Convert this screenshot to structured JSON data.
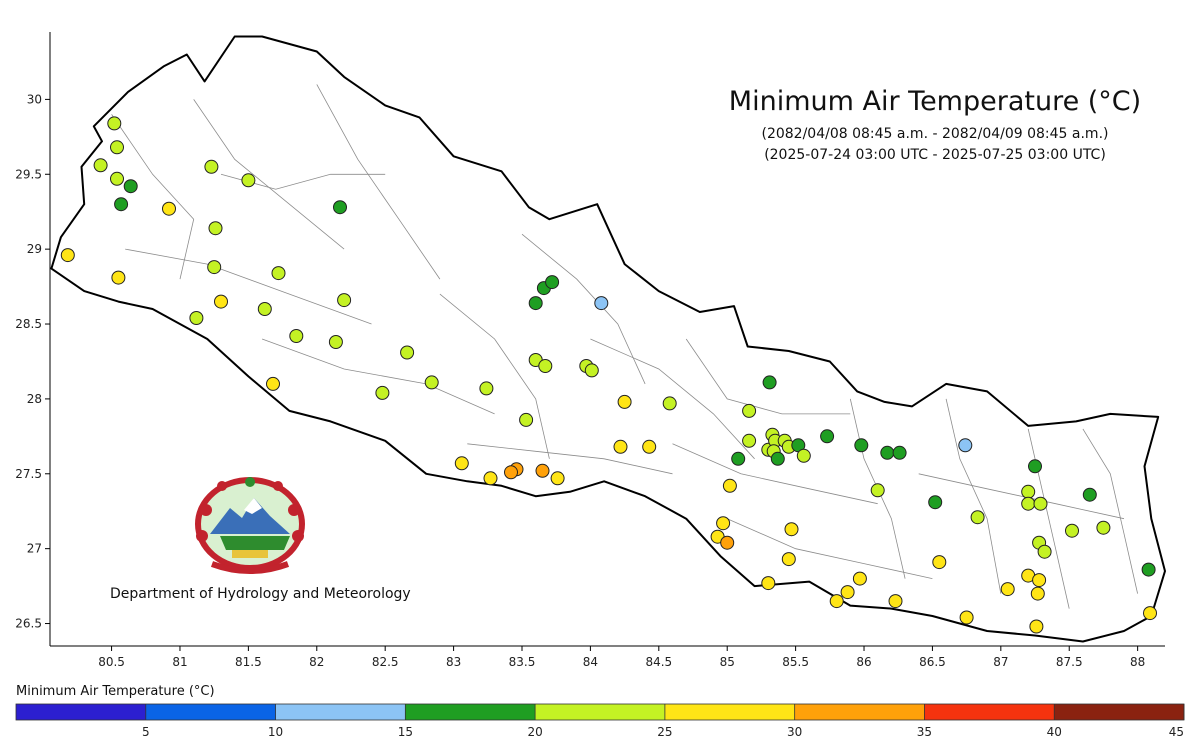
{
  "title": "Minimum Air Temperature (°C)",
  "subtitle_local": "(2082/04/08 08:45 a.m. - 2082/04/09 08:45 a.m.)",
  "subtitle_utc": "(2025-07-24 03:00 UTC - 2025-07-25 03:00 UTC)",
  "organization": "Department of Hydrology and Meteorology",
  "emblem_icon": "nepal-government-emblem-icon",
  "legend": {
    "title": "Minimum Air Temperature (°C)",
    "bins": [
      {
        "from": 0,
        "to": 5,
        "color": "#2c1fd0"
      },
      {
        "from": 5,
        "to": 10,
        "color": "#0a64e6"
      },
      {
        "from": 10,
        "to": 15,
        "color": "#8cc4f5"
      },
      {
        "from": 15,
        "to": 20,
        "color": "#1f9e22"
      },
      {
        "from": 20,
        "to": 25,
        "color": "#c4f224"
      },
      {
        "from": 25,
        "to": 30,
        "color": "#ffe516"
      },
      {
        "from": 30,
        "to": 35,
        "color": "#ffa10a"
      },
      {
        "from": 35,
        "to": 40,
        "color": "#f5330e"
      },
      {
        "from": 40,
        "to": 45,
        "color": "#8a2210"
      }
    ],
    "tick_labels": [
      "5",
      "10",
      "15",
      "20",
      "25",
      "30",
      "35",
      "40",
      "45"
    ]
  },
  "axes": {
    "lon_range": [
      80.05,
      88.2
    ],
    "lat_range": [
      26.35,
      30.45
    ],
    "x_ticks": [
      {
        "v": 80.5,
        "label": "80.5"
      },
      {
        "v": 81,
        "label": "81"
      },
      {
        "v": 81.5,
        "label": "81.5"
      },
      {
        "v": 82,
        "label": "82"
      },
      {
        "v": 82.5,
        "label": "82.5"
      },
      {
        "v": 83,
        "label": "83"
      },
      {
        "v": 83.5,
        "label": "83.5"
      },
      {
        "v": 84,
        "label": "84"
      },
      {
        "v": 84.5,
        "label": "84.5"
      },
      {
        "v": 85,
        "label": "85"
      },
      {
        "v": 85.5,
        "label": "85.5"
      },
      {
        "v": 86,
        "label": "86"
      },
      {
        "v": 86.5,
        "label": "86.5"
      },
      {
        "v": 87,
        "label": "87"
      },
      {
        "v": 87.5,
        "label": "87.5"
      },
      {
        "v": 88,
        "label": "88"
      }
    ],
    "y_ticks": [
      {
        "v": 26.5,
        "label": "26.5"
      },
      {
        "v": 27,
        "label": "27"
      },
      {
        "v": 27.5,
        "label": "27.5"
      },
      {
        "v": 28,
        "label": "28"
      },
      {
        "v": 28.5,
        "label": "28.5"
      },
      {
        "v": 29,
        "label": "29"
      },
      {
        "v": 29.5,
        "label": "29.5"
      },
      {
        "v": 30,
        "label": "30"
      }
    ]
  },
  "border_outline": [
    [
      80.06,
      28.87
    ],
    [
      80.13,
      29.08
    ],
    [
      80.3,
      29.3
    ],
    [
      80.28,
      29.55
    ],
    [
      80.43,
      29.72
    ],
    [
      80.37,
      29.82
    ],
    [
      80.62,
      30.05
    ],
    [
      80.88,
      30.22
    ],
    [
      81.05,
      30.3
    ],
    [
      81.18,
      30.12
    ],
    [
      81.4,
      30.42
    ],
    [
      81.6,
      30.42
    ],
    [
      82.0,
      30.32
    ],
    [
      82.2,
      30.15
    ],
    [
      82.5,
      29.96
    ],
    [
      82.75,
      29.88
    ],
    [
      83.0,
      29.62
    ],
    [
      83.35,
      29.52
    ],
    [
      83.55,
      29.28
    ],
    [
      83.7,
      29.2
    ],
    [
      84.05,
      29.3
    ],
    [
      84.15,
      29.1
    ],
    [
      84.25,
      28.9
    ],
    [
      84.5,
      28.72
    ],
    [
      84.8,
      28.58
    ],
    [
      85.05,
      28.62
    ],
    [
      85.15,
      28.35
    ],
    [
      85.45,
      28.32
    ],
    [
      85.75,
      28.25
    ],
    [
      85.95,
      28.05
    ],
    [
      86.15,
      27.98
    ],
    [
      86.35,
      27.95
    ],
    [
      86.6,
      28.1
    ],
    [
      86.9,
      28.05
    ],
    [
      87.2,
      27.82
    ],
    [
      87.55,
      27.85
    ],
    [
      87.8,
      27.9
    ],
    [
      88.15,
      27.88
    ],
    [
      88.05,
      27.55
    ],
    [
      88.1,
      27.2
    ],
    [
      88.2,
      26.85
    ],
    [
      88.1,
      26.55
    ],
    [
      87.9,
      26.45
    ],
    [
      87.6,
      26.38
    ],
    [
      87.25,
      26.42
    ],
    [
      86.9,
      26.45
    ],
    [
      86.5,
      26.55
    ],
    [
      86.2,
      26.6
    ],
    [
      85.9,
      26.62
    ],
    [
      85.6,
      26.78
    ],
    [
      85.2,
      26.75
    ],
    [
      84.95,
      26.95
    ],
    [
      84.7,
      27.2
    ],
    [
      84.4,
      27.35
    ],
    [
      84.1,
      27.45
    ],
    [
      83.85,
      27.38
    ],
    [
      83.6,
      27.35
    ],
    [
      83.35,
      27.42
    ],
    [
      83.1,
      27.45
    ],
    [
      82.8,
      27.5
    ],
    [
      82.5,
      27.72
    ],
    [
      82.1,
      27.85
    ],
    [
      81.8,
      27.92
    ],
    [
      81.5,
      28.15
    ],
    [
      81.2,
      28.4
    ],
    [
      80.8,
      28.6
    ],
    [
      80.55,
      28.65
    ],
    [
      80.3,
      28.72
    ],
    [
      80.06,
      28.87
    ]
  ],
  "stations": [
    {
      "lon": 80.52,
      "lat": 29.84,
      "c": "#c4f224"
    },
    {
      "lon": 80.54,
      "lat": 29.68,
      "c": "#c4f224"
    },
    {
      "lon": 80.42,
      "lat": 29.56,
      "c": "#c4f224"
    },
    {
      "lon": 80.54,
      "lat": 29.47,
      "c": "#c4f224"
    },
    {
      "lon": 80.64,
      "lat": 29.42,
      "c": "#1f9e22"
    },
    {
      "lon": 80.57,
      "lat": 29.3,
      "c": "#1f9e22"
    },
    {
      "lon": 80.92,
      "lat": 29.27,
      "c": "#ffe516"
    },
    {
      "lon": 81.23,
      "lat": 29.55,
      "c": "#c4f224"
    },
    {
      "lon": 81.5,
      "lat": 29.46,
      "c": "#c4f224"
    },
    {
      "lon": 82.17,
      "lat": 29.28,
      "c": "#1f9e22"
    },
    {
      "lon": 81.26,
      "lat": 29.14,
      "c": "#c4f224"
    },
    {
      "lon": 80.18,
      "lat": 28.96,
      "c": "#ffe516"
    },
    {
      "lon": 80.55,
      "lat": 28.81,
      "c": "#ffe516"
    },
    {
      "lon": 81.25,
      "lat": 28.88,
      "c": "#c4f224"
    },
    {
      "lon": 81.72,
      "lat": 28.84,
      "c": "#c4f224"
    },
    {
      "lon": 81.3,
      "lat": 28.65,
      "c": "#ffe516"
    },
    {
      "lon": 81.62,
      "lat": 28.6,
      "c": "#c4f224"
    },
    {
      "lon": 82.2,
      "lat": 28.66,
      "c": "#c4f224"
    },
    {
      "lon": 81.12,
      "lat": 28.54,
      "c": "#c4f224"
    },
    {
      "lon": 81.85,
      "lat": 28.42,
      "c": "#c4f224"
    },
    {
      "lon": 82.14,
      "lat": 28.38,
      "c": "#c4f224"
    },
    {
      "lon": 82.66,
      "lat": 28.31,
      "c": "#c4f224"
    },
    {
      "lon": 81.68,
      "lat": 28.1,
      "c": "#ffe516"
    },
    {
      "lon": 82.84,
      "lat": 28.11,
      "c": "#c4f224"
    },
    {
      "lon": 82.48,
      "lat": 28.04,
      "c": "#c4f224"
    },
    {
      "lon": 83.24,
      "lat": 28.07,
      "c": "#c4f224"
    },
    {
      "lon": 83.6,
      "lat": 28.26,
      "c": "#c4f224"
    },
    {
      "lon": 83.67,
      "lat": 28.22,
      "c": "#c4f224"
    },
    {
      "lon": 83.53,
      "lat": 27.86,
      "c": "#c4f224"
    },
    {
      "lon": 83.6,
      "lat": 28.64,
      "c": "#1f9e22"
    },
    {
      "lon": 83.66,
      "lat": 28.74,
      "c": "#1f9e22"
    },
    {
      "lon": 83.72,
      "lat": 28.78,
      "c": "#1f9e22"
    },
    {
      "lon": 84.08,
      "lat": 28.64,
      "c": "#8cc4f5"
    },
    {
      "lon": 83.97,
      "lat": 28.22,
      "c": "#c4f224"
    },
    {
      "lon": 84.01,
      "lat": 28.19,
      "c": "#c4f224"
    },
    {
      "lon": 84.25,
      "lat": 27.98,
      "c": "#ffe516"
    },
    {
      "lon": 84.58,
      "lat": 27.97,
      "c": "#c4f224"
    },
    {
      "lon": 83.06,
      "lat": 27.57,
      "c": "#ffe516"
    },
    {
      "lon": 83.27,
      "lat": 27.47,
      "c": "#ffe516"
    },
    {
      "lon": 83.46,
      "lat": 27.53,
      "c": "#ffa10a"
    },
    {
      "lon": 83.42,
      "lat": 27.51,
      "c": "#ffa10a"
    },
    {
      "lon": 83.65,
      "lat": 27.52,
      "c": "#ffa10a"
    },
    {
      "lon": 83.76,
      "lat": 27.47,
      "c": "#ffe516"
    },
    {
      "lon": 84.22,
      "lat": 27.68,
      "c": "#ffe516"
    },
    {
      "lon": 84.43,
      "lat": 27.68,
      "c": "#ffe516"
    },
    {
      "lon": 85.31,
      "lat": 28.11,
      "c": "#1f9e22"
    },
    {
      "lon": 85.16,
      "lat": 27.92,
      "c": "#c4f224"
    },
    {
      "lon": 85.16,
      "lat": 27.72,
      "c": "#c4f224"
    },
    {
      "lon": 85.08,
      "lat": 27.6,
      "c": "#1f9e22"
    },
    {
      "lon": 85.33,
      "lat": 27.76,
      "c": "#c4f224"
    },
    {
      "lon": 85.3,
      "lat": 27.66,
      "c": "#c4f224"
    },
    {
      "lon": 85.35,
      "lat": 27.72,
      "c": "#c4f224"
    },
    {
      "lon": 85.42,
      "lat": 27.72,
      "c": "#c4f224"
    },
    {
      "lon": 85.34,
      "lat": 27.65,
      "c": "#c4f224"
    },
    {
      "lon": 85.45,
      "lat": 27.68,
      "c": "#c4f224"
    },
    {
      "lon": 85.37,
      "lat": 27.6,
      "c": "#1f9e22"
    },
    {
      "lon": 85.52,
      "lat": 27.69,
      "c": "#1f9e22"
    },
    {
      "lon": 85.56,
      "lat": 27.62,
      "c": "#c4f224"
    },
    {
      "lon": 85.73,
      "lat": 27.75,
      "c": "#1f9e22"
    },
    {
      "lon": 85.98,
      "lat": 27.69,
      "c": "#1f9e22"
    },
    {
      "lon": 86.17,
      "lat": 27.64,
      "c": "#1f9e22"
    },
    {
      "lon": 86.26,
      "lat": 27.64,
      "c": "#1f9e22"
    },
    {
      "lon": 86.74,
      "lat": 27.69,
      "c": "#8cc4f5"
    },
    {
      "lon": 86.1,
      "lat": 27.39,
      "c": "#c4f224"
    },
    {
      "lon": 86.52,
      "lat": 27.31,
      "c": "#1f9e22"
    },
    {
      "lon": 86.83,
      "lat": 27.21,
      "c": "#c4f224"
    },
    {
      "lon": 85.02,
      "lat": 27.42,
      "c": "#ffe516"
    },
    {
      "lon": 84.97,
      "lat": 27.17,
      "c": "#ffe516"
    },
    {
      "lon": 84.93,
      "lat": 27.08,
      "c": "#ffe516"
    },
    {
      "lon": 85.0,
      "lat": 27.04,
      "c": "#ffa10a"
    },
    {
      "lon": 85.47,
      "lat": 27.13,
      "c": "#ffe516"
    },
    {
      "lon": 85.45,
      "lat": 26.93,
      "c": "#ffe516"
    },
    {
      "lon": 85.3,
      "lat": 26.77,
      "c": "#ffe516"
    },
    {
      "lon": 85.97,
      "lat": 26.8,
      "c": "#ffe516"
    },
    {
      "lon": 85.88,
      "lat": 26.71,
      "c": "#ffe516"
    },
    {
      "lon": 85.8,
      "lat": 26.65,
      "c": "#ffe516"
    },
    {
      "lon": 86.23,
      "lat": 26.65,
      "c": "#ffe516"
    },
    {
      "lon": 86.55,
      "lat": 26.91,
      "c": "#ffe516"
    },
    {
      "lon": 86.75,
      "lat": 26.54,
      "c": "#ffe516"
    },
    {
      "lon": 87.05,
      "lat": 26.73,
      "c": "#ffe516"
    },
    {
      "lon": 87.2,
      "lat": 26.82,
      "c": "#ffe516"
    },
    {
      "lon": 87.28,
      "lat": 26.79,
      "c": "#ffe516"
    },
    {
      "lon": 87.27,
      "lat": 26.7,
      "c": "#ffe516"
    },
    {
      "lon": 87.26,
      "lat": 26.48,
      "c": "#ffe516"
    },
    {
      "lon": 87.25,
      "lat": 27.55,
      "c": "#1f9e22"
    },
    {
      "lon": 87.2,
      "lat": 27.38,
      "c": "#c4f224"
    },
    {
      "lon": 87.2,
      "lat": 27.3,
      "c": "#c4f224"
    },
    {
      "lon": 87.29,
      "lat": 27.3,
      "c": "#c4f224"
    },
    {
      "lon": 87.28,
      "lat": 27.04,
      "c": "#c4f224"
    },
    {
      "lon": 87.32,
      "lat": 26.98,
      "c": "#c4f224"
    },
    {
      "lon": 87.65,
      "lat": 27.36,
      "c": "#1f9e22"
    },
    {
      "lon": 87.52,
      "lat": 27.12,
      "c": "#c4f224"
    },
    {
      "lon": 87.75,
      "lat": 27.14,
      "c": "#c4f224"
    },
    {
      "lon": 88.08,
      "lat": 26.86,
      "c": "#1f9e22"
    },
    {
      "lon": 88.09,
      "lat": 26.57,
      "c": "#ffe516"
    }
  ]
}
